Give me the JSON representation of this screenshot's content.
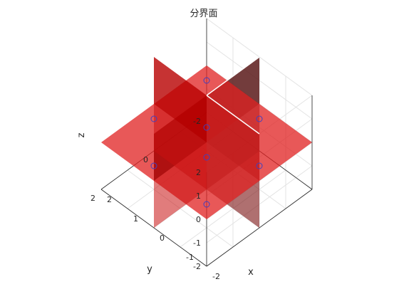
{
  "chart_data": {
    "type": "3d-surface",
    "title": "分界面",
    "xlabel": "x",
    "ylabel": "y",
    "zlabel": "z",
    "xlim": [
      -2,
      2
    ],
    "ylim": [
      -2,
      2
    ],
    "zlim": [
      -2,
      2
    ],
    "x_ticks": [
      "-2",
      "-1",
      "0",
      "1",
      "2"
    ],
    "y_ticks": [
      "-2",
      "0",
      "2"
    ],
    "z_ticks": [
      "-2",
      "-1",
      "0",
      "1",
      "2"
    ],
    "grid": true,
    "planes": [
      {
        "orientation": "z=0",
        "extent": [
          -2,
          2
        ],
        "color": "#e02020",
        "opacity": 0.75
      },
      {
        "orientation": "x=0",
        "extent": [
          -2,
          2
        ],
        "color": "#c00000",
        "opacity": 0.75
      },
      {
        "orientation": "y=0",
        "extent": [
          -2,
          2
        ],
        "color": "#a00000",
        "opacity": 0.75
      }
    ],
    "points": [
      {
        "x": 1,
        "y": 1,
        "z": 1
      },
      {
        "x": 1,
        "y": 1,
        "z": -1
      },
      {
        "x": 1,
        "y": -1,
        "z": 1
      },
      {
        "x": 1,
        "y": -1,
        "z": -1
      },
      {
        "x": -1,
        "y": 1,
        "z": 1
      },
      {
        "x": -1,
        "y": 1,
        "z": -1
      },
      {
        "x": -1,
        "y": -1,
        "z": 1
      },
      {
        "x": -1,
        "y": -1,
        "z": -1
      }
    ],
    "marker": "o",
    "marker_color": "#4040c0"
  }
}
